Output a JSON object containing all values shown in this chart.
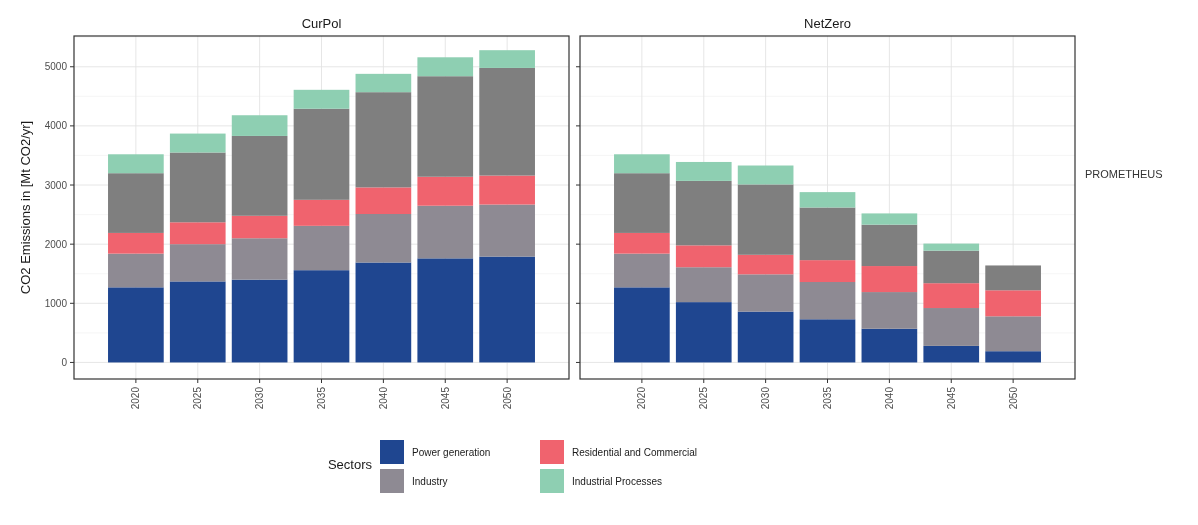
{
  "chart_data": [
    {
      "type": "bar",
      "title": "CurPol",
      "ylabel": "CO2 Emissions in [Mt CO2/yr]",
      "stacked": true,
      "categories": [
        "2020",
        "2025",
        "2030",
        "2035",
        "2040",
        "2045",
        "2050"
      ],
      "series": [
        {
          "name": "Power generation",
          "color": "#1f4690",
          "values": [
            1270,
            1370,
            1400,
            1560,
            1690,
            1760,
            1790
          ]
        },
        {
          "name": "Industry",
          "color": "#8e8a93",
          "values": [
            570,
            630,
            700,
            750,
            820,
            890,
            880
          ]
        },
        {
          "name": "Residential and Commercial",
          "color": "#f0636e",
          "values": [
            350,
            370,
            380,
            440,
            450,
            490,
            490
          ]
        },
        {
          "color": "#7f7f7f",
          "values": [
            1010,
            1180,
            1350,
            1540,
            1610,
            1700,
            1820
          ]
        },
        {
          "name": "Industrial Processes",
          "color": "#8ecfb2",
          "values": [
            320,
            320,
            350,
            320,
            310,
            320,
            300
          ]
        }
      ],
      "ylim": [
        -280,
        5520
      ],
      "yticks": [
        0,
        1000,
        2000,
        3000,
        4000,
        5000
      ],
      "grid": true,
      "legend": "bottom",
      "legend_title": "Sectors"
    },
    {
      "type": "bar",
      "title": "NetZero",
      "stacked": true,
      "categories": [
        "2020",
        "2025",
        "2030",
        "2035",
        "2040",
        "2045",
        "2050"
      ],
      "series": [
        {
          "color": "#1f4690",
          "values": [
            1270,
            1020,
            860,
            730,
            570,
            280,
            190
          ]
        },
        {
          "color": "#8e8a93",
          "values": [
            570,
            590,
            630,
            630,
            620,
            640,
            590
          ]
        },
        {
          "color": "#f0636e",
          "values": [
            350,
            370,
            330,
            370,
            440,
            420,
            440
          ]
        },
        {
          "color": "#7f7f7f",
          "values": [
            1010,
            1090,
            1190,
            890,
            700,
            550,
            420
          ]
        },
        {
          "color": "#8ecfb2",
          "values": [
            320,
            320,
            320,
            260,
            190,
            120,
            null
          ]
        }
      ],
      "ylim": [
        -280,
        5520
      ],
      "yticks": [
        0,
        1000,
        2000,
        3000,
        4000,
        5000
      ],
      "grid": true,
      "tick_labels": "x",
      "annotations": [
        "PROMETHEUS"
      ]
    }
  ]
}
